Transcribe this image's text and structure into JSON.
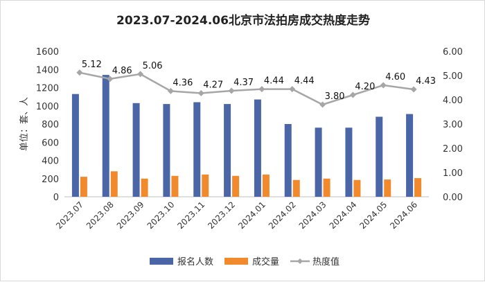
{
  "chart_data": {
    "type": "bar",
    "title": "2023.07-2024.06北京市法拍房成交热度走势",
    "ylabel": "单位：套、人",
    "categories": [
      "2023.07",
      "2023.08",
      "2023.09",
      "2023.10",
      "2023.11",
      "2023.12",
      "2024.01",
      "2024.02",
      "2024.03",
      "2024.04",
      "2024.05",
      "2024.06"
    ],
    "series": [
      {
        "name": "报名人数",
        "type": "bar",
        "axis": "left",
        "color": "#4a66a6",
        "values": [
          1130,
          1340,
          1030,
          1020,
          1040,
          1020,
          1070,
          800,
          760,
          760,
          880,
          910
        ]
      },
      {
        "name": "成交量",
        "type": "bar",
        "axis": "left",
        "color": "#f08a2c",
        "values": [
          220,
          280,
          200,
          230,
          245,
          230,
          245,
          185,
          200,
          185,
          190,
          205
        ]
      },
      {
        "name": "热度值",
        "type": "line",
        "axis": "right",
        "color": "#a6a6a6",
        "values": [
          5.12,
          4.86,
          5.06,
          4.36,
          4.27,
          4.37,
          4.44,
          4.44,
          3.8,
          4.2,
          4.6,
          4.43
        ],
        "labels": [
          "5.12",
          "4.86",
          "5.06",
          "4.36",
          "4.27",
          "4.37",
          "4.44",
          "4.44",
          "3.80",
          "4.20",
          "4.60",
          "4.43"
        ]
      }
    ],
    "y_left": {
      "min": 0,
      "max": 1600,
      "ticks": [
        "0",
        "200",
        "400",
        "600",
        "800",
        "1000",
        "1200",
        "1400",
        "1600"
      ]
    },
    "y_right": {
      "min": 0,
      "max": 6,
      "ticks": [
        "0.00",
        "1.00",
        "2.00",
        "3.00",
        "4.00",
        "5.00",
        "6.00"
      ]
    },
    "grid": false,
    "legend_position": "bottom"
  }
}
